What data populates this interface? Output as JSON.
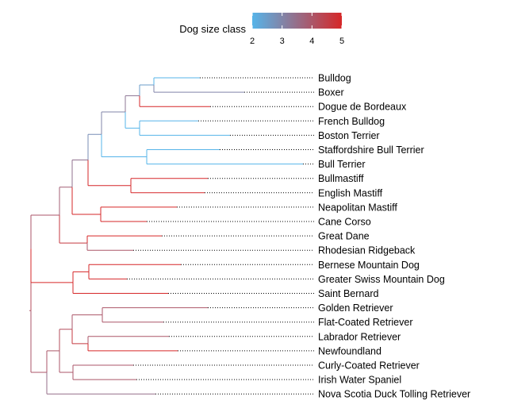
{
  "legend": {
    "title": "Dog size class",
    "ticks": [
      "2",
      "3",
      "4",
      "5"
    ],
    "min": 2,
    "max": 5,
    "low_color": "#56B4E9",
    "high_color": "#D62728"
  },
  "tree": {
    "leaf_link_color": "#000000",
    "leaf_link_style": "dotted",
    "nodes": [
      {
        "id": "n_bulldog",
        "label": "Bulldog",
        "size": 2
      },
      {
        "id": "n_boxer",
        "label": "Boxer",
        "size": 3
      },
      {
        "id": "n_dogue",
        "label": "Dogue de Bordeaux",
        "size": 5
      },
      {
        "id": "n_french",
        "label": "French Bulldog",
        "size": 2
      },
      {
        "id": "n_boston",
        "label": "Boston Terrier",
        "size": 2
      },
      {
        "id": "n_staff",
        "label": "Staffordshire Bull Terrier",
        "size": 2
      },
      {
        "id": "n_bullterrier",
        "label": "Bull Terrier",
        "size": 2
      },
      {
        "id": "n_bullmastiff",
        "label": "Bullmastiff",
        "size": 5
      },
      {
        "id": "n_english",
        "label": "English Mastiff",
        "size": 5
      },
      {
        "id": "n_neapolitan",
        "label": "Neapolitan Mastiff",
        "size": 5
      },
      {
        "id": "n_cane",
        "label": "Cane Corso",
        "size": 5
      },
      {
        "id": "n_greatdane",
        "label": "Great Dane",
        "size": 5
      },
      {
        "id": "n_rhodesian",
        "label": "Rhodesian Ridgeback",
        "size": 4
      },
      {
        "id": "n_bernese",
        "label": "Bernese Mountain Dog",
        "size": 5
      },
      {
        "id": "n_greaterswiss",
        "label": "Greater Swiss Mountain Dog",
        "size": 5
      },
      {
        "id": "n_saint",
        "label": "Saint Bernard",
        "size": 5
      },
      {
        "id": "n_golden",
        "label": "Golden Retriever",
        "size": 4
      },
      {
        "id": "n_flat",
        "label": "Flat-Coated Retriever",
        "size": 4
      },
      {
        "id": "n_labrador",
        "label": "Labrador Retriever",
        "size": 4
      },
      {
        "id": "n_newfoundland",
        "label": "Newfoundland",
        "size": 5
      },
      {
        "id": "n_curly",
        "label": "Curly-Coated Retriever",
        "size": 4
      },
      {
        "id": "n_irish",
        "label": "Irish Water Spaniel",
        "size": 4
      },
      {
        "id": "n_nova",
        "label": "Nova Scotia Duck Tolling Retriever",
        "size": 3.5
      },
      {
        "id": "c_bulldog_boxer",
        "size": 2.5
      },
      {
        "id": "c_bb_dogue",
        "size": 3.3
      },
      {
        "id": "c_french_boston",
        "size": 2
      },
      {
        "id": "c_bulldog_group",
        "size": 3
      },
      {
        "id": "c_staff_bullterrier",
        "size": 2
      },
      {
        "id": "c_terrier_group",
        "size": 2.8
      },
      {
        "id": "c_bullmastiff_english",
        "size": 5
      },
      {
        "id": "c_molosser_group",
        "size": 3.4
      },
      {
        "id": "c_neapolitan_cane",
        "size": 5
      },
      {
        "id": "c_mastiff_group",
        "size": 3.8
      },
      {
        "id": "c_greatdane_rhodesian",
        "size": 4.6
      },
      {
        "id": "c_upper_group",
        "size": 4
      },
      {
        "id": "c_bernese_greaterswiss",
        "size": 5
      },
      {
        "id": "c_mountain_group",
        "size": 5
      },
      {
        "id": "c_large_group",
        "size": 4.2
      },
      {
        "id": "c_golden_flat",
        "size": 4
      },
      {
        "id": "c_labrador_newfoundland",
        "size": 4.6
      },
      {
        "id": "c_retriever_group",
        "size": 4.2
      },
      {
        "id": "c_curly_irish",
        "size": 4
      },
      {
        "id": "c_water_group",
        "size": 4
      },
      {
        "id": "c_nova_group",
        "size": 4
      },
      {
        "id": "c_root",
        "size": 4
      }
    ],
    "edges": [
      [
        "c_root",
        "c_large_group"
      ],
      [
        "c_root",
        "c_nova_group"
      ],
      [
        "c_large_group",
        "c_upper_group"
      ],
      [
        "c_large_group",
        "c_mountain_group"
      ],
      [
        "c_upper_group",
        "c_mastiff_group"
      ],
      [
        "c_upper_group",
        "c_greatdane_rhodesian"
      ],
      [
        "c_mastiff_group",
        "c_molosser_group"
      ],
      [
        "c_mastiff_group",
        "c_neapolitan_cane"
      ],
      [
        "c_molosser_group",
        "c_terrier_group"
      ],
      [
        "c_molosser_group",
        "c_bullmastiff_english"
      ],
      [
        "c_terrier_group",
        "c_bulldog_group"
      ],
      [
        "c_terrier_group",
        "c_staff_bullterrier"
      ],
      [
        "c_bulldog_group",
        "c_bb_dogue"
      ],
      [
        "c_bulldog_group",
        "c_french_boston"
      ],
      [
        "c_bb_dogue",
        "c_bulldog_boxer"
      ],
      [
        "c_bb_dogue",
        "n_dogue"
      ],
      [
        "c_bulldog_boxer",
        "n_bulldog"
      ],
      [
        "c_bulldog_boxer",
        "n_boxer"
      ],
      [
        "c_french_boston",
        "n_french"
      ],
      [
        "c_french_boston",
        "n_boston"
      ],
      [
        "c_staff_bullterrier",
        "n_staff"
      ],
      [
        "c_staff_bullterrier",
        "n_bullterrier"
      ],
      [
        "c_bullmastiff_english",
        "n_bullmastiff"
      ],
      [
        "c_bullmastiff_english",
        "n_english"
      ],
      [
        "c_neapolitan_cane",
        "n_neapolitan"
      ],
      [
        "c_neapolitan_cane",
        "n_cane"
      ],
      [
        "c_greatdane_rhodesian",
        "n_greatdane"
      ],
      [
        "c_greatdane_rhodesian",
        "n_rhodesian"
      ],
      [
        "c_mountain_group",
        "c_bernese_greaterswiss"
      ],
      [
        "c_mountain_group",
        "n_saint"
      ],
      [
        "c_bernese_greaterswiss",
        "n_bernese"
      ],
      [
        "c_bernese_greaterswiss",
        "n_greaterswiss"
      ],
      [
        "c_nova_group",
        "c_water_group"
      ],
      [
        "c_nova_group",
        "n_nova"
      ],
      [
        "c_water_group",
        "c_retriever_group"
      ],
      [
        "c_water_group",
        "c_curly_irish"
      ],
      [
        "c_retriever_group",
        "c_golden_flat"
      ],
      [
        "c_retriever_group",
        "c_labrador_newfoundland"
      ],
      [
        "c_golden_flat",
        "n_golden"
      ],
      [
        "c_golden_flat",
        "n_flat"
      ],
      [
        "c_labrador_newfoundland",
        "n_labrador"
      ],
      [
        "c_labrador_newfoundland",
        "n_newfoundland"
      ],
      [
        "c_curly_irish",
        "n_curly"
      ],
      [
        "c_curly_irish",
        "n_irish"
      ]
    ]
  }
}
